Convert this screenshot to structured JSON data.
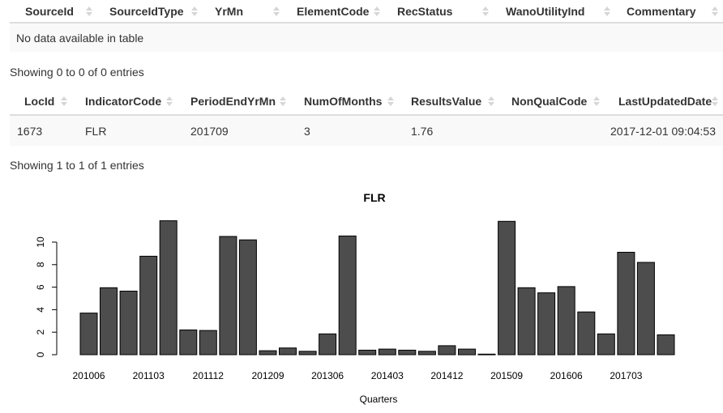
{
  "table1": {
    "columns": [
      "SourceId",
      "SourceIdType",
      "YrMn",
      "ElementCode",
      "RecStatus",
      "WanoUtilityInd",
      "Commentary"
    ],
    "empty_message": "No data available in table",
    "info": "Showing 0 to 0 of 0 entries"
  },
  "table2": {
    "columns": [
      "LocId",
      "IndicatorCode",
      "PeriodEndYrMn",
      "NumOfMonths",
      "ResultsValue",
      "NonQualCode",
      "LastUpdatedDate"
    ],
    "rows": [
      [
        "1673",
        "FLR",
        "201709",
        "3",
        "1.76",
        "",
        "2017-12-01 09:04:53"
      ]
    ],
    "info": "Showing 1 to 1 of 1 entries"
  },
  "chart_data": {
    "type": "bar",
    "title": "FLR",
    "xlabel": "Quarters",
    "ylabel": "",
    "ylim": [
      0,
      11.8
    ],
    "yticks": [
      "0",
      "2",
      "4",
      "6",
      "8",
      "10"
    ],
    "xtick_labels": [
      "201006",
      "201103",
      "201112",
      "201209",
      "201306",
      "201403",
      "201412",
      "201509",
      "201606",
      "201703"
    ],
    "bar_color": "#4d4d4d",
    "categories": [
      "201006",
      "201009",
      "201012",
      "201103",
      "201106",
      "201109",
      "201112",
      "201203",
      "201206",
      "201209",
      "201212",
      "201303",
      "201306",
      "201309",
      "201312",
      "201403",
      "201406",
      "201409",
      "201412",
      "201503",
      "201506",
      "201509",
      "201512",
      "201603",
      "201606",
      "201609",
      "201612",
      "201703",
      "201706",
      "201709"
    ],
    "values": [
      3.7,
      5.95,
      5.65,
      8.75,
      11.9,
      2.2,
      2.15,
      10.5,
      10.2,
      0.35,
      0.6,
      0.3,
      1.85,
      10.55,
      0.4,
      0.5,
      0.4,
      0.3,
      0.8,
      0.5,
      0.05,
      11.85,
      5.95,
      5.5,
      6.05,
      3.8,
      1.85,
      9.1,
      8.2,
      1.76
    ]
  }
}
